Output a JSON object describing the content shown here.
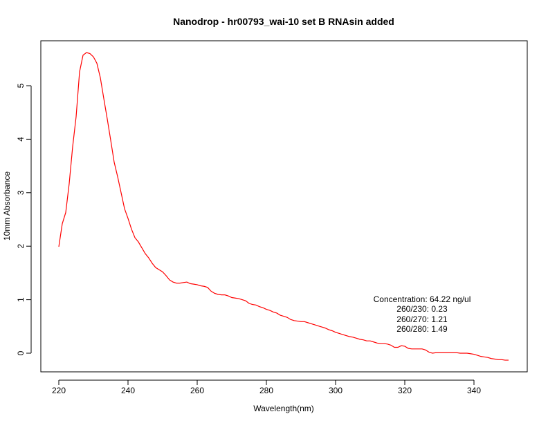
{
  "chart_data": {
    "type": "line",
    "title": "Nanodrop - hr00793_wai-10 set B RNAsin added",
    "xlabel": "Wavelength(nm)",
    "ylabel": "10mm Absorbance",
    "xlim": [
      220,
      350
    ],
    "ylim": [
      0,
      5.62
    ],
    "xticks": [
      220,
      240,
      260,
      280,
      300,
      320,
      340
    ],
    "yticks": [
      0,
      1,
      2,
      3,
      4,
      5
    ],
    "grid": false,
    "line_color": "#ff0000",
    "series": [
      {
        "x": [
          220,
          221,
          222,
          223,
          224,
          225,
          226,
          227,
          228,
          229,
          230,
          231,
          232,
          233,
          234,
          235,
          236,
          237,
          238,
          239,
          240,
          241,
          242,
          243,
          244,
          245,
          246,
          247,
          248,
          249,
          250,
          251,
          252,
          253,
          254,
          255,
          256,
          257,
          258,
          259,
          260,
          261,
          262,
          263,
          264,
          265,
          266,
          267,
          268,
          269,
          270,
          271,
          272,
          273,
          274,
          275,
          276,
          277,
          278,
          279,
          280,
          281,
          282,
          283,
          284,
          285,
          286,
          287,
          288,
          289,
          290,
          291,
          292,
          293,
          294,
          295,
          296,
          297,
          298,
          299,
          300,
          301,
          302,
          303,
          304,
          305,
          306,
          307,
          308,
          309,
          310,
          311,
          312,
          313,
          314,
          315,
          316,
          317,
          318,
          319,
          320,
          321,
          322,
          323,
          324,
          325,
          326,
          327,
          328,
          329,
          330,
          331,
          332,
          333,
          334,
          335,
          336,
          337,
          338,
          339,
          340,
          341,
          342,
          343,
          344,
          345,
          346,
          347,
          348,
          349,
          350
        ],
        "y": [
          1.99,
          2.42,
          2.63,
          3.17,
          3.86,
          4.42,
          5.26,
          5.57,
          5.62,
          5.6,
          5.54,
          5.42,
          5.15,
          4.76,
          4.38,
          3.98,
          3.57,
          3.3,
          3.0,
          2.7,
          2.52,
          2.32,
          2.16,
          2.08,
          1.97,
          1.86,
          1.78,
          1.68,
          1.6,
          1.56,
          1.52,
          1.45,
          1.37,
          1.33,
          1.31,
          1.31,
          1.32,
          1.33,
          1.3,
          1.29,
          1.28,
          1.26,
          1.25,
          1.23,
          1.16,
          1.12,
          1.1,
          1.09,
          1.09,
          1.07,
          1.04,
          1.03,
          1.02,
          1.0,
          0.98,
          0.93,
          0.91,
          0.9,
          0.87,
          0.85,
          0.82,
          0.8,
          0.77,
          0.75,
          0.71,
          0.69,
          0.67,
          0.63,
          0.61,
          0.6,
          0.59,
          0.59,
          0.57,
          0.55,
          0.53,
          0.51,
          0.49,
          0.47,
          0.44,
          0.42,
          0.39,
          0.37,
          0.35,
          0.33,
          0.31,
          0.3,
          0.28,
          0.26,
          0.25,
          0.23,
          0.23,
          0.21,
          0.19,
          0.18,
          0.18,
          0.17,
          0.15,
          0.11,
          0.11,
          0.14,
          0.13,
          0.09,
          0.08,
          0.08,
          0.08,
          0.08,
          0.06,
          0.02,
          0.0,
          0.01,
          0.01,
          0.01,
          0.01,
          0.01,
          0.01,
          0.01,
          0.0,
          0.0,
          0.0,
          -0.01,
          -0.02,
          -0.04,
          -0.06,
          -0.07,
          -0.08,
          -0.1,
          -0.11,
          -0.12,
          -0.12,
          -0.13,
          -0.13
        ]
      }
    ],
    "annotations": [
      "Concentration: 64.22 ng/ul",
      "260/230: 0.23",
      "260/270: 1.21",
      "260/280: 1.49"
    ]
  }
}
